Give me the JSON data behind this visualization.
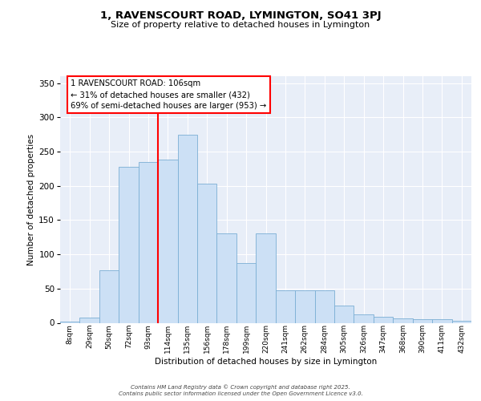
{
  "title_line1": "1, RAVENSCOURT ROAD, LYMINGTON, SO41 3PJ",
  "title_line2": "Size of property relative to detached houses in Lymington",
  "xlabel": "Distribution of detached houses by size in Lymington",
  "ylabel": "Number of detached properties",
  "categories": [
    "8sqm",
    "29sqm",
    "50sqm",
    "72sqm",
    "93sqm",
    "114sqm",
    "135sqm",
    "156sqm",
    "178sqm",
    "199sqm",
    "220sqm",
    "241sqm",
    "262sqm",
    "284sqm",
    "305sqm",
    "326sqm",
    "347sqm",
    "368sqm",
    "390sqm",
    "411sqm",
    "432sqm"
  ],
  "bar_heights": [
    2,
    8,
    77,
    228,
    235,
    238,
    275,
    203,
    130,
    87,
    130,
    48,
    48,
    48,
    25,
    12,
    9,
    7,
    5,
    5,
    3
  ],
  "bar_color": "#cce0f5",
  "bar_edge_color": "#7bafd4",
  "vline_position": 4.5,
  "vline_color": "red",
  "annotation_text": "1 RAVENSCOURT ROAD: 106sqm\n← 31% of detached houses are smaller (432)\n69% of semi-detached houses are larger (953) →",
  "annotation_box_facecolor": "white",
  "annotation_box_edgecolor": "red",
  "ylim": [
    0,
    360
  ],
  "yticks": [
    0,
    50,
    100,
    150,
    200,
    250,
    300,
    350
  ],
  "bg_color": "#e8eef8",
  "grid_color": "white",
  "footer_line1": "Contains HM Land Registry data © Crown copyright and database right 2025.",
  "footer_line2": "Contains public sector information licensed under the Open Government Licence v3.0."
}
